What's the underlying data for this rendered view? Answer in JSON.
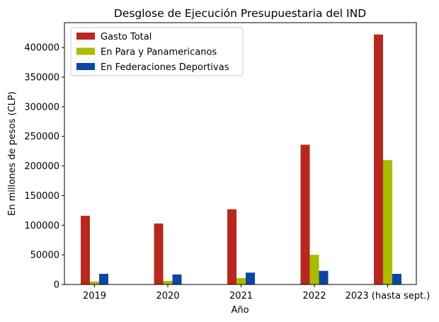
{
  "chart_data": {
    "type": "bar",
    "title": "Desglose de Ejecución Presupuestaria del IND",
    "xlabel": "Año",
    "ylabel": "En millones de pesos (CLP)",
    "categories": [
      "2019",
      "2020",
      "2021",
      "2022",
      "2023 (hasta sept.)"
    ],
    "ylim": [
      0,
      442000
    ],
    "yticks": [
      0,
      50000,
      100000,
      150000,
      200000,
      250000,
      300000,
      350000,
      400000
    ],
    "grid": false,
    "legend_position": "top-left",
    "series": [
      {
        "name": "Gasto Total",
        "color": "#b8281f",
        "values": [
          116000,
          103000,
          127000,
          236000,
          422000
        ]
      },
      {
        "name": "En Para y Panamericanos",
        "color": "#aabb00",
        "values": [
          5000,
          6000,
          11000,
          50000,
          210000
        ]
      },
      {
        "name": "En Federaciones Deportivas",
        "color": "#0a47a5",
        "values": [
          18000,
          17000,
          20000,
          23000,
          18000
        ]
      }
    ]
  }
}
